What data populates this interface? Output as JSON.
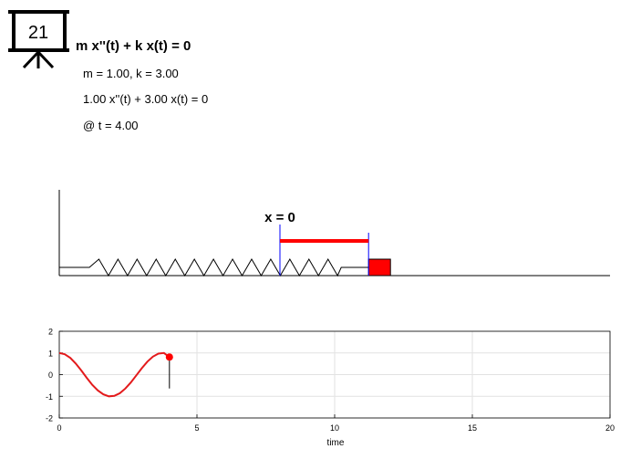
{
  "header": {
    "badge_number": "21",
    "equation": "m x''(t) + k x(t) = 0",
    "params": "m = 1.00, k = 3.00",
    "equation_numeric": "1.00 x''(t) + 3.00 x(t) = 0",
    "time_label": "@ t = 4.00"
  },
  "simulation": {
    "origin_label": "x = 0",
    "displacement": 0.81,
    "mass_color": "#ff0000",
    "spring_color": "#000000",
    "marker_color": "#0000ff",
    "bar_color": "#ff0000"
  },
  "chart_data": {
    "type": "line",
    "xlabel": "time",
    "xlim": [
      0,
      20
    ],
    "ylim": [
      -2,
      2
    ],
    "xticks": [
      0,
      5,
      10,
      15,
      20
    ],
    "yticks": [
      -2,
      -1,
      0,
      1,
      2
    ],
    "grid": true,
    "series": [
      {
        "color": "#e31a1c",
        "x": [
          0,
          0.2,
          0.4,
          0.6,
          0.8,
          1.0,
          1.2,
          1.4,
          1.6,
          1.8,
          2.0,
          2.2,
          2.4,
          2.6,
          2.8,
          3.0,
          3.2,
          3.4,
          3.6,
          3.8,
          4.0
        ],
        "y": [
          1.0,
          0.94,
          0.77,
          0.51,
          0.19,
          -0.15,
          -0.47,
          -0.73,
          -0.91,
          -1.0,
          -0.98,
          -0.86,
          -0.64,
          -0.36,
          -0.03,
          0.3,
          0.6,
          0.83,
          0.97,
          1.0,
          0.81
        ]
      }
    ],
    "current_point": {
      "t": 4.0,
      "x": 0.81
    }
  }
}
